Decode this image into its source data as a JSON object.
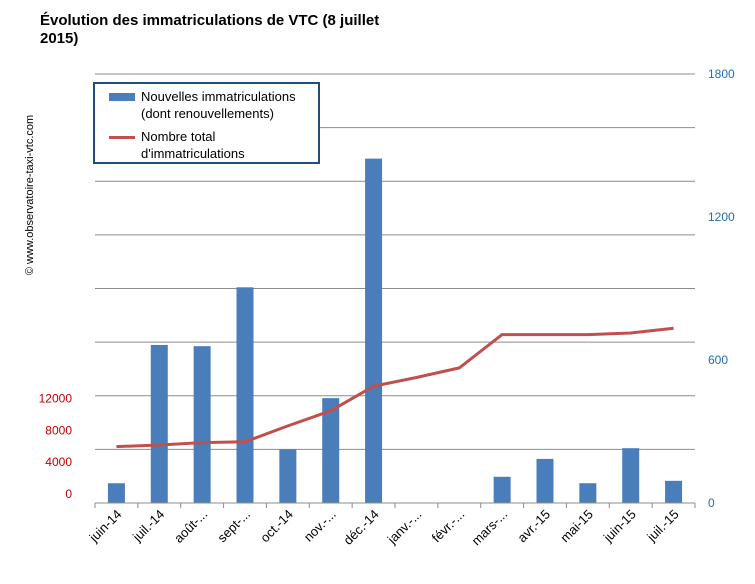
{
  "chart_data": {
    "type": "bar",
    "title": "Évolution des immatriculations de VTC (8 juillet 2015)",
    "watermark": "© www.observatoire-taxi-vtc.com",
    "categories": [
      "juin-14",
      "juil.-14",
      "août-...",
      "sept-...",
      "oct.-14",
      "nov.-...",
      "déc.-14",
      "janv.-...",
      "févr.-...",
      "mars-...",
      "avr.-15",
      "mai-15",
      "juin-15",
      "juil.-15"
    ],
    "series": [
      {
        "name": "Nouvelles immatriculations (dont renouvellements)",
        "type": "bar",
        "axis": "right",
        "color": "#4a7ebb",
        "values": [
          83,
          663,
          658,
          905,
          225,
          440,
          1445,
          0,
          0,
          110,
          185,
          83,
          230,
          93
        ]
      },
      {
        "name": "Nombre total d'immatriculations",
        "type": "line",
        "axis": "left",
        "color": "#c0504d",
        "values": [
          7100,
          7300,
          7600,
          7700,
          9700,
          11600,
          14700,
          15800,
          17000,
          21200,
          21200,
          21200,
          21400,
          22000
        ]
      }
    ],
    "left_axis": {
      "ticks": [
        0,
        4000,
        8000,
        12000
      ],
      "color": "#c00000",
      "range": [
        0,
        54000
      ]
    },
    "right_axis": {
      "ticks": [
        0,
        600,
        1200,
        1800
      ],
      "color": "#1f6fb0",
      "range": [
        0,
        1800
      ]
    },
    "legend_position": "top-left"
  },
  "legend": {
    "bars_line1": "Nouvelles immatriculations",
    "bars_line2": "(dont renouvellements)",
    "line_line1": "Nombre total",
    "line_line2": "d'immatriculations"
  }
}
